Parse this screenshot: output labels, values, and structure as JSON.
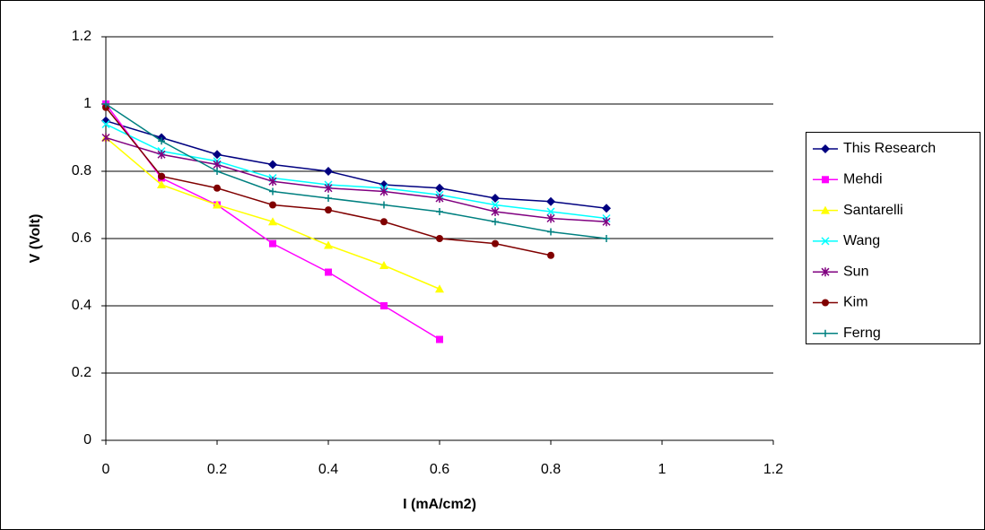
{
  "chart_data": {
    "type": "line",
    "x_label": "I (mA/cm2)",
    "y_label": "V (Volt)",
    "x": [
      0,
      0.1,
      0.2,
      0.3,
      0.4,
      0.5,
      0.6,
      0.7,
      0.8,
      0.9
    ],
    "xlim": [
      0,
      1.2
    ],
    "xticks": [
      0,
      0.2,
      0.4,
      0.6,
      0.8,
      1,
      1.2
    ],
    "ylim": [
      0,
      1.2
    ],
    "yticks": [
      0,
      0.2,
      0.4,
      0.6,
      0.8,
      1,
      1.2
    ],
    "grid": true,
    "legend": "right",
    "series": [
      {
        "name": "This Research",
        "color": "#000080",
        "marker": "diamond",
        "values": [
          0.95,
          0.9,
          0.85,
          0.82,
          0.8,
          0.76,
          0.75,
          0.72,
          0.71,
          0.69
        ]
      },
      {
        "name": "Mehdi",
        "color": "#ff00ff",
        "marker": "square",
        "values": [
          1.0,
          0.78,
          0.7,
          0.585,
          0.5,
          0.4,
          0.3,
          null,
          null,
          null
        ]
      },
      {
        "name": "Santarelli",
        "color": "#ffff00",
        "marker": "triangle",
        "values": [
          0.9,
          0.76,
          0.7,
          0.65,
          0.58,
          0.52,
          0.45,
          null,
          null,
          null
        ]
      },
      {
        "name": "Wang",
        "color": "#00ffff",
        "marker": "x",
        "values": [
          0.94,
          0.86,
          0.83,
          0.78,
          0.76,
          0.75,
          0.73,
          0.7,
          0.68,
          0.66
        ]
      },
      {
        "name": "Sun",
        "color": "#800080",
        "marker": "star",
        "values": [
          0.9,
          0.85,
          0.82,
          0.77,
          0.75,
          0.74,
          0.72,
          0.68,
          0.66,
          0.65
        ]
      },
      {
        "name": "Kim",
        "color": "#800000",
        "marker": "circle",
        "values": [
          0.99,
          0.785,
          0.75,
          0.7,
          0.685,
          0.65,
          0.6,
          0.585,
          0.55,
          null
        ]
      },
      {
        "name": "Ferng",
        "color": "#008080",
        "marker": "plus",
        "values": [
          1.0,
          0.89,
          0.8,
          0.74,
          0.72,
          0.7,
          0.68,
          0.65,
          0.62,
          0.6
        ]
      }
    ]
  }
}
